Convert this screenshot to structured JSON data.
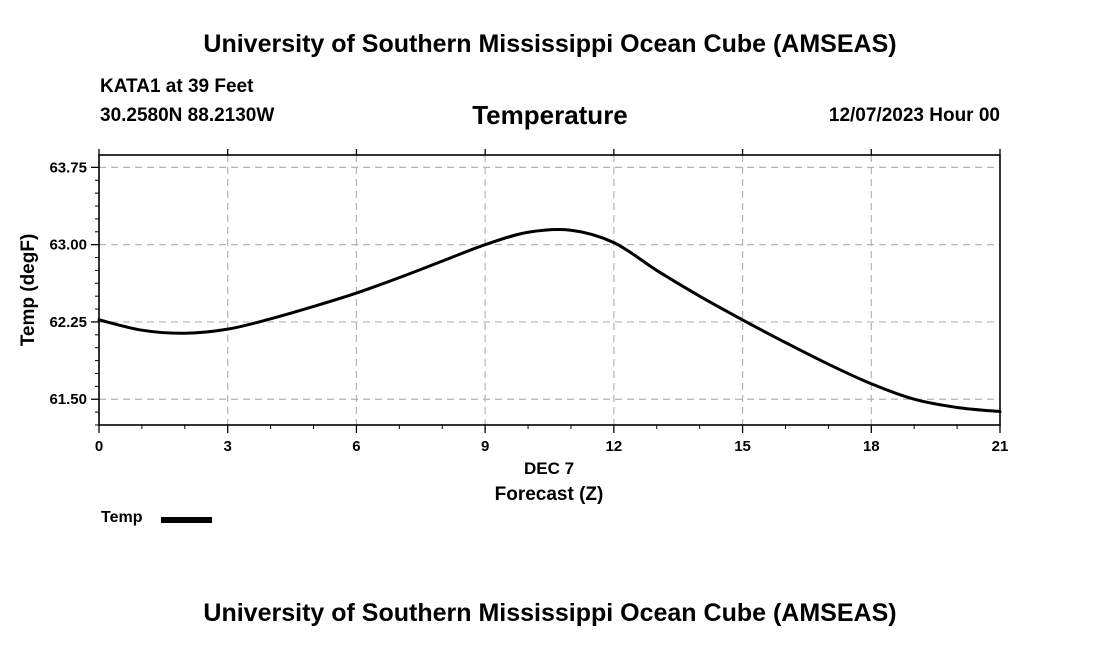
{
  "header": {
    "title": "University of Southern Mississippi Ocean Cube (AMSEAS)",
    "station": "KATA1 at 39 Feet",
    "coords": "30.2580N  88.2130W",
    "variable_title": "Temperature",
    "forecast_time": "12/07/2023 Hour 00"
  },
  "footer": {
    "title": "University of Southern Mississippi Ocean Cube (AMSEAS)"
  },
  "legend": {
    "label": "Temp",
    "color": "#000000"
  },
  "chart_data": {
    "type": "line",
    "title": "Temperature",
    "xlabel": "Forecast (Z)",
    "xlabel_date": "DEC 7",
    "ylabel": "Temp (degF)",
    "xlim": [
      0,
      21
    ],
    "ylim": [
      61.25,
      63.87
    ],
    "xticks": [
      0,
      3,
      6,
      9,
      12,
      15,
      18,
      21
    ],
    "xtick_labels": [
      "0",
      "3",
      "6",
      "9",
      "12",
      "15",
      "18",
      "21"
    ],
    "yticks": [
      61.5,
      62.25,
      63.0,
      63.75
    ],
    "ytick_labels": [
      "61.50",
      "62.25",
      "63.00",
      "63.75"
    ],
    "grid": true,
    "legend_position": "bottom-left",
    "series": [
      {
        "name": "Temp",
        "color": "#000000",
        "x": [
          0,
          1,
          2,
          3,
          4,
          5,
          6,
          7,
          8,
          9,
          10,
          11,
          12,
          13,
          14,
          15,
          16,
          17,
          18,
          19,
          20,
          21
        ],
        "values": [
          62.27,
          62.17,
          62.14,
          62.18,
          62.28,
          62.4,
          62.53,
          62.68,
          62.84,
          63.0,
          63.12,
          63.14,
          63.02,
          62.75,
          62.5,
          62.27,
          62.05,
          61.84,
          61.65,
          61.5,
          61.42,
          61.38
        ]
      }
    ]
  }
}
